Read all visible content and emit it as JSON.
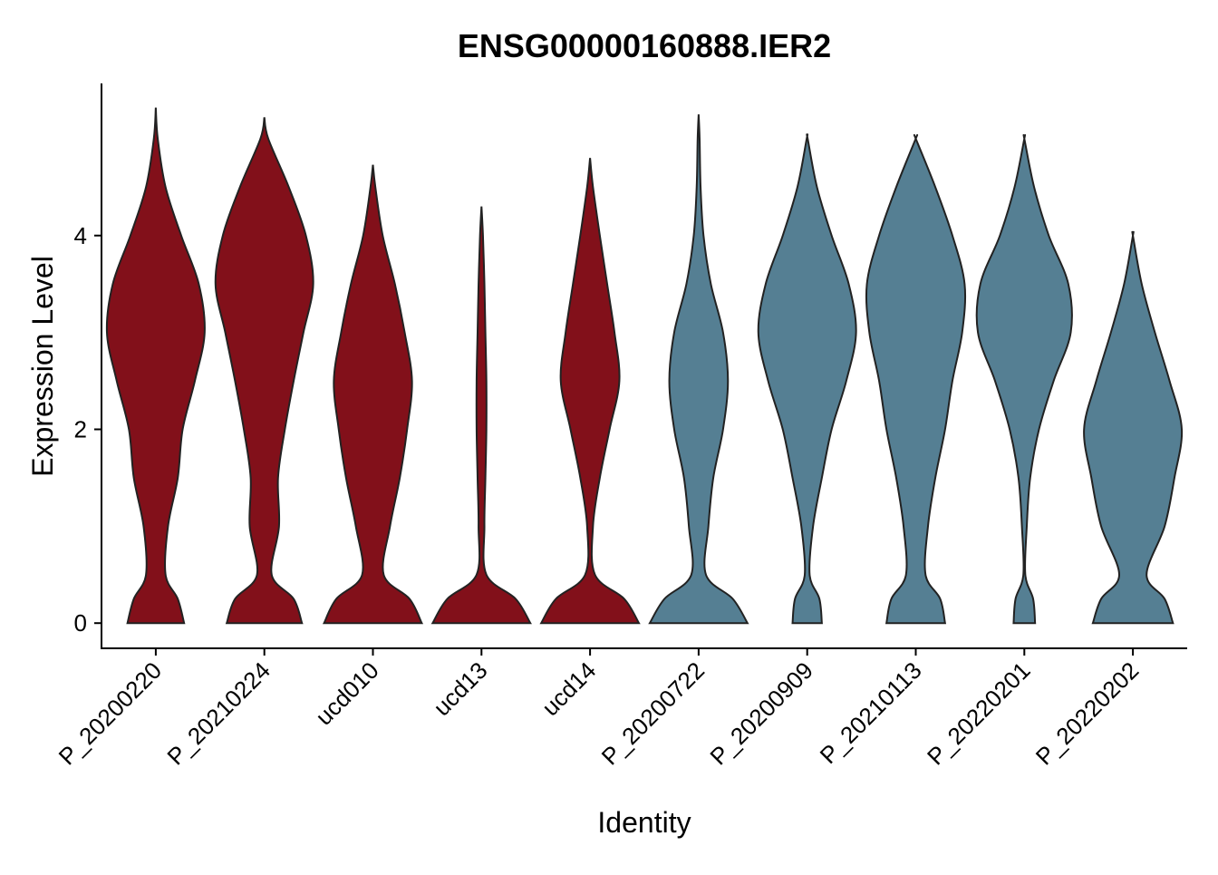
{
  "chart_data": {
    "type": "violin",
    "title": "ENSG00000160888.IER2",
    "xlabel": "Identity",
    "ylabel": "Expression Level",
    "categories": [
      "P_20200220",
      "P_20210224",
      "ucd010",
      "ucd13",
      "ucd14",
      "P_20200722",
      "P_20200909",
      "P_20210113",
      "P_20220201",
      "P_20220202"
    ],
    "colors": [
      "#82101a",
      "#82101a",
      "#82101a",
      "#82101a",
      "#82101a",
      "#557f93",
      "#557f93",
      "#557f93",
      "#557f93",
      "#557f93"
    ],
    "y_grid": [
      0,
      0.25,
      0.5,
      1,
      1.5,
      2,
      2.5,
      3,
      3.5,
      4,
      4.5,
      5
    ],
    "max": [
      5.32,
      5.22,
      4.73,
      4.3,
      4.8,
      5.25,
      5.02,
      5.0,
      5.0,
      4.0
    ],
    "density": [
      [
        0.58,
        0.45,
        0.2,
        0.25,
        0.45,
        0.55,
        0.8,
        1,
        0.88,
        0.52,
        0.2,
        0.04
      ],
      [
        0.77,
        0.6,
        0.15,
        0.3,
        0.28,
        0.42,
        0.6,
        0.8,
        1,
        0.85,
        0.5,
        0.08
      ],
      [
        1,
        0.75,
        0.22,
        0.35,
        0.55,
        0.7,
        0.8,
        0.65,
        0.45,
        0.2,
        0.05,
        null
      ],
      [
        1,
        0.7,
        0.1,
        0.06,
        0.08,
        0.1,
        0.1,
        0.08,
        0.06,
        0.03,
        null,
        null
      ],
      [
        1,
        0.7,
        0.1,
        0.06,
        0.2,
        0.4,
        0.6,
        0.5,
        0.35,
        0.2,
        0.06,
        null
      ],
      [
        1,
        0.7,
        0.15,
        0.2,
        0.3,
        0.5,
        0.6,
        0.5,
        0.25,
        0.1,
        0.04,
        0.02
      ],
      [
        0.3,
        0.25,
        0.05,
        0.12,
        0.3,
        0.5,
        0.8,
        1,
        0.85,
        0.5,
        0.2,
        0.01
      ],
      [
        0.6,
        0.5,
        0.2,
        0.25,
        0.4,
        0.6,
        0.75,
        0.95,
        1,
        0.75,
        0.4,
        0
      ],
      [
        0.22,
        0.18,
        0.02,
        0.05,
        0.12,
        0.3,
        0.6,
        0.95,
        0.9,
        0.5,
        0.2,
        0
      ],
      [
        0.82,
        0.65,
        0.28,
        0.65,
        0.85,
        1,
        0.75,
        0.45,
        0.18,
        0,
        null,
        null
      ]
    ],
    "ylim": [
      -0.26,
      5.57
    ],
    "yticks": [
      0,
      2,
      4
    ],
    "grid": false
  }
}
